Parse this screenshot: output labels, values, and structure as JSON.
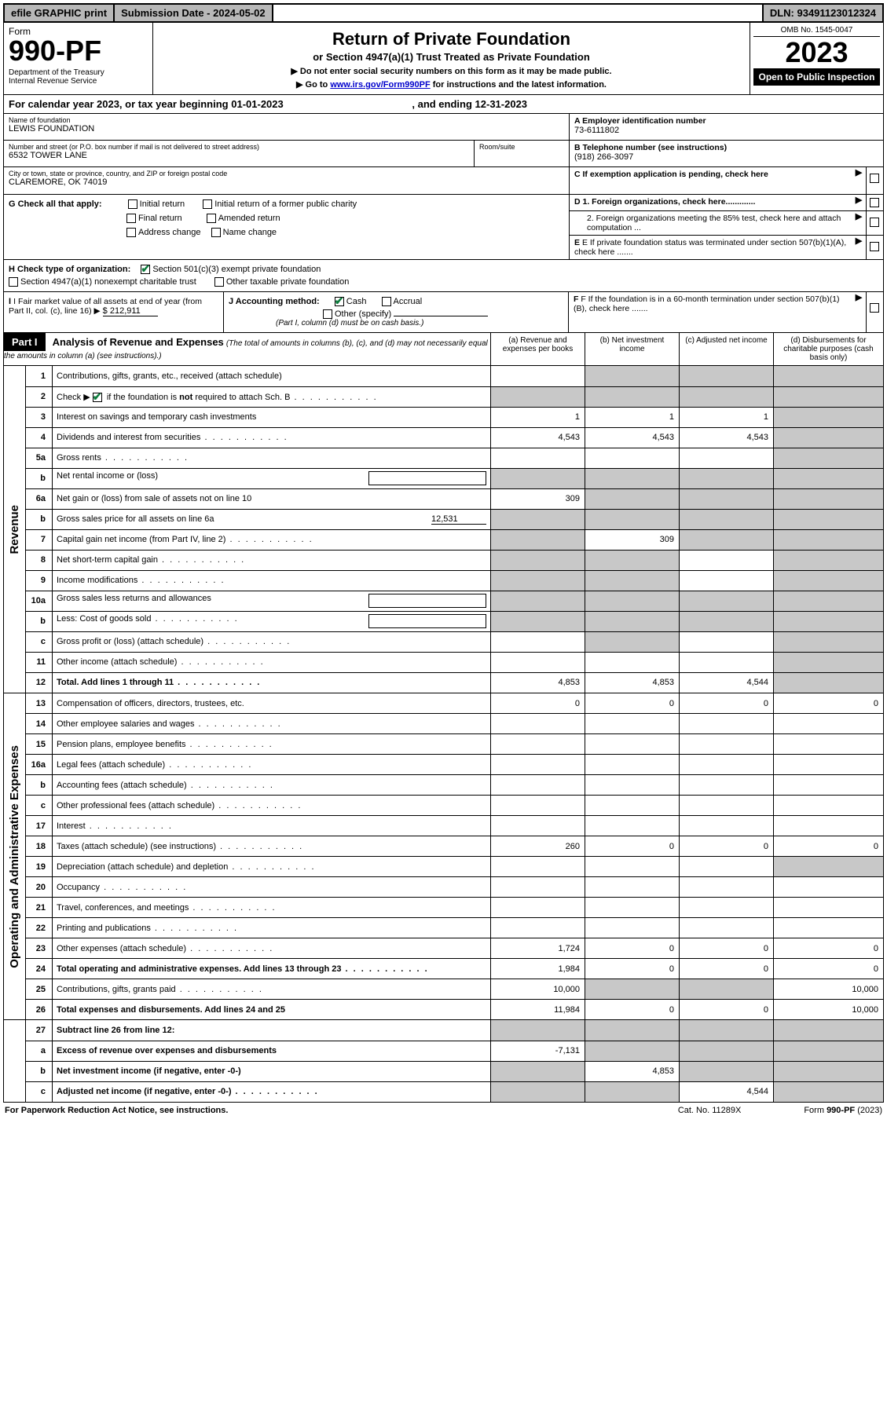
{
  "topbar": {
    "efile": "efile GRAPHIC print",
    "subdate_label": "Submission Date - ",
    "subdate": "2024-05-02",
    "dln_label": "DLN: ",
    "dln": "93491123012324"
  },
  "header": {
    "form_label": "Form",
    "form_num": "990-PF",
    "dept": "Department of the Treasury",
    "irs": "Internal Revenue Service",
    "title": "Return of Private Foundation",
    "subtitle": "or Section 4947(a)(1) Trust Treated as Private Foundation",
    "note1": "▶ Do not enter social security numbers on this form as it may be made public.",
    "note2_pre": "▶ Go to ",
    "note2_link": "www.irs.gov/Form990PF",
    "note2_post": " for instructions and the latest information.",
    "omb": "OMB No. 1545-0047",
    "year": "2023",
    "open": "Open to Public Inspection"
  },
  "calyear": {
    "text_pre": "For calendar year 2023, or tax year beginning ",
    "begin": "01-01-2023",
    "mid": " , and ending ",
    "end": "12-31-2023"
  },
  "ident": {
    "name_label": "Name of foundation",
    "name": "LEWIS FOUNDATION",
    "addr_label": "Number and street (or P.O. box number if mail is not delivered to street address)",
    "addr": "6532 TOWER LANE",
    "room_label": "Room/suite",
    "room": "",
    "city_label": "City or town, state or province, country, and ZIP or foreign postal code",
    "city": "CLAREMORE, OK  74019",
    "A_label": "A Employer identification number",
    "A_val": "73-6111802",
    "B_label": "B Telephone number (see instructions)",
    "B_val": "(918) 266-3097",
    "C_label": "C If exemption application is pending, check here",
    "D1_label": "D 1. Foreign organizations, check here.............",
    "D2_label": "2. Foreign organizations meeting the 85% test, check here and attach computation ...",
    "E_label": "E  If private foundation status was terminated under section 507(b)(1)(A), check here .......",
    "F_label": "F  If the foundation is in a 60-month termination under section 507(b)(1)(B), check here ......."
  },
  "G": {
    "label": "G Check all that apply:",
    "opts": [
      "Initial return",
      "Initial return of a former public charity",
      "Final return",
      "Amended return",
      "Address change",
      "Name change"
    ]
  },
  "H": {
    "label": "H Check type of organization:",
    "o1": "Section 501(c)(3) exempt private foundation",
    "o2": "Section 4947(a)(1) nonexempt charitable trust",
    "o3": "Other taxable private foundation"
  },
  "I": {
    "label": "I Fair market value of all assets at end of year (from Part II, col. (c), line 16) ▶",
    "val": "$  212,911"
  },
  "J": {
    "label": "J Accounting method:",
    "cash": "Cash",
    "accrual": "Accrual",
    "other": "Other (specify)",
    "note": "(Part I, column (d) must be on cash basis.)"
  },
  "part1": {
    "badge": "Part I",
    "title": "Analysis of Revenue and Expenses",
    "title_note": "(The total of amounts in columns (b), (c), and (d) may not necessarily equal the amounts in column (a) (see instructions).)",
    "col_a": "(a)  Revenue and expenses per books",
    "col_b": "(b)  Net investment income",
    "col_c": "(c)  Adjusted net income",
    "col_d": "(d)  Disbursements for charitable purposes (cash basis only)"
  },
  "side": {
    "revenue": "Revenue",
    "expenses": "Operating and Administrative Expenses"
  },
  "rows": {
    "1": {
      "n": "1",
      "d": "Contributions, gifts, grants, etc., received (attach schedule)",
      "a": "",
      "b": "",
      "c": "",
      "dd": "",
      "shade": [
        "b",
        "c",
        "dd"
      ]
    },
    "2": {
      "n": "2",
      "d": "Check ▶ [✔] if the foundation is not required to attach Sch. B",
      "dots": true,
      "a": "",
      "b": "",
      "c": "",
      "dd": "",
      "shade": [
        "a",
        "b",
        "c",
        "dd"
      ]
    },
    "3": {
      "n": "3",
      "d": "Interest on savings and temporary cash investments",
      "a": "1",
      "b": "1",
      "c": "1",
      "dd": "",
      "shade": [
        "dd"
      ]
    },
    "4": {
      "n": "4",
      "d": "Dividends and interest from securities",
      "dots": true,
      "a": "4,543",
      "b": "4,543",
      "c": "4,543",
      "dd": "",
      "shade": [
        "dd"
      ]
    },
    "5a": {
      "n": "5a",
      "d": "Gross rents",
      "dots": true,
      "a": "",
      "b": "",
      "c": "",
      "dd": "",
      "shade": [
        "dd"
      ]
    },
    "5b": {
      "n": "b",
      "d": "Net rental income or (loss)",
      "box": true,
      "a": "",
      "b": "",
      "c": "",
      "dd": "",
      "shade": [
        "a",
        "b",
        "c",
        "dd"
      ]
    },
    "6a": {
      "n": "6a",
      "d": "Net gain or (loss) from sale of assets not on line 10",
      "a": "309",
      "b": "",
      "c": "",
      "dd": "",
      "shade": [
        "b",
        "c",
        "dd"
      ]
    },
    "6b": {
      "n": "b",
      "d": "Gross sales price for all assets on line 6a",
      "uval": "12,531",
      "a": "",
      "b": "",
      "c": "",
      "dd": "",
      "shade": [
        "a",
        "b",
        "c",
        "dd"
      ]
    },
    "7": {
      "n": "7",
      "d": "Capital gain net income (from Part IV, line 2)",
      "dots": true,
      "a": "",
      "b": "309",
      "c": "",
      "dd": "",
      "shade": [
        "a",
        "c",
        "dd"
      ]
    },
    "8": {
      "n": "8",
      "d": "Net short-term capital gain",
      "dots": true,
      "a": "",
      "b": "",
      "c": "",
      "dd": "",
      "shade": [
        "a",
        "b",
        "dd"
      ]
    },
    "9": {
      "n": "9",
      "d": "Income modifications",
      "dots": true,
      "a": "",
      "b": "",
      "c": "",
      "dd": "",
      "shade": [
        "a",
        "b",
        "dd"
      ]
    },
    "10a": {
      "n": "10a",
      "d": "Gross sales less returns and allowances",
      "box": true,
      "a": "",
      "b": "",
      "c": "",
      "dd": "",
      "shade": [
        "a",
        "b",
        "c",
        "dd"
      ]
    },
    "10b": {
      "n": "b",
      "d": "Less: Cost of goods sold",
      "dots": true,
      "box": true,
      "a": "",
      "b": "",
      "c": "",
      "dd": "",
      "shade": [
        "a",
        "b",
        "c",
        "dd"
      ]
    },
    "10c": {
      "n": "c",
      "d": "Gross profit or (loss) (attach schedule)",
      "dots": true,
      "a": "",
      "b": "",
      "c": "",
      "dd": "",
      "shade": [
        "b",
        "dd"
      ]
    },
    "11": {
      "n": "11",
      "d": "Other income (attach schedule)",
      "dots": true,
      "a": "",
      "b": "",
      "c": "",
      "dd": "",
      "shade": [
        "dd"
      ]
    },
    "12": {
      "n": "12",
      "d": "Total. Add lines 1 through 11",
      "bold": true,
      "dots": true,
      "a": "4,853",
      "b": "4,853",
      "c": "4,544",
      "dd": "",
      "shade": [
        "dd"
      ]
    },
    "13": {
      "n": "13",
      "d": "Compensation of officers, directors, trustees, etc.",
      "a": "0",
      "b": "0",
      "c": "0",
      "dd": "0"
    },
    "14": {
      "n": "14",
      "d": "Other employee salaries and wages",
      "dots": true,
      "a": "",
      "b": "",
      "c": "",
      "dd": ""
    },
    "15": {
      "n": "15",
      "d": "Pension plans, employee benefits",
      "dots": true,
      "a": "",
      "b": "",
      "c": "",
      "dd": ""
    },
    "16a": {
      "n": "16a",
      "d": "Legal fees (attach schedule)",
      "dots": true,
      "a": "",
      "b": "",
      "c": "",
      "dd": ""
    },
    "16b": {
      "n": "b",
      "d": "Accounting fees (attach schedule)",
      "dots": true,
      "a": "",
      "b": "",
      "c": "",
      "dd": ""
    },
    "16c": {
      "n": "c",
      "d": "Other professional fees (attach schedule)",
      "dots": true,
      "a": "",
      "b": "",
      "c": "",
      "dd": ""
    },
    "17": {
      "n": "17",
      "d": "Interest",
      "dots": true,
      "a": "",
      "b": "",
      "c": "",
      "dd": ""
    },
    "18": {
      "n": "18",
      "d": "Taxes (attach schedule) (see instructions)",
      "dots": true,
      "a": "260",
      "b": "0",
      "c": "0",
      "dd": "0"
    },
    "19": {
      "n": "19",
      "d": "Depreciation (attach schedule) and depletion",
      "dots": true,
      "a": "",
      "b": "",
      "c": "",
      "dd": "",
      "shade": [
        "dd"
      ]
    },
    "20": {
      "n": "20",
      "d": "Occupancy",
      "dots": true,
      "a": "",
      "b": "",
      "c": "",
      "dd": ""
    },
    "21": {
      "n": "21",
      "d": "Travel, conferences, and meetings",
      "dots": true,
      "a": "",
      "b": "",
      "c": "",
      "dd": ""
    },
    "22": {
      "n": "22",
      "d": "Printing and publications",
      "dots": true,
      "a": "",
      "b": "",
      "c": "",
      "dd": ""
    },
    "23": {
      "n": "23",
      "d": "Other expenses (attach schedule)",
      "dots": true,
      "a": "1,724",
      "b": "0",
      "c": "0",
      "dd": "0"
    },
    "24": {
      "n": "24",
      "d": "Total operating and administrative expenses. Add lines 13 through 23",
      "bold": true,
      "dots": true,
      "a": "1,984",
      "b": "0",
      "c": "0",
      "dd": "0"
    },
    "25": {
      "n": "25",
      "d": "Contributions, gifts, grants paid",
      "dots": true,
      "a": "10,000",
      "b": "",
      "c": "",
      "dd": "10,000",
      "shade": [
        "b",
        "c"
      ]
    },
    "26": {
      "n": "26",
      "d": "Total expenses and disbursements. Add lines 24 and 25",
      "bold": true,
      "a": "11,984",
      "b": "0",
      "c": "0",
      "dd": "10,000"
    },
    "27": {
      "n": "27",
      "d": "Subtract line 26 from line 12:",
      "bold": true,
      "a": "",
      "b": "",
      "c": "",
      "dd": "",
      "shade": [
        "a",
        "b",
        "c",
        "dd"
      ]
    },
    "27a": {
      "n": "a",
      "d": "Excess of revenue over expenses and disbursements",
      "bold": true,
      "a": "-7,131",
      "b": "",
      "c": "",
      "dd": "",
      "shade": [
        "b",
        "c",
        "dd"
      ]
    },
    "27b": {
      "n": "b",
      "d": "Net investment income (if negative, enter -0-)",
      "bold": true,
      "a": "",
      "b": "4,853",
      "c": "",
      "dd": "",
      "shade": [
        "a",
        "c",
        "dd"
      ]
    },
    "27c": {
      "n": "c",
      "d": "Adjusted net income (if negative, enter -0-)",
      "bold": true,
      "dots": true,
      "a": "",
      "b": "",
      "c": "4,544",
      "dd": "",
      "shade": [
        "a",
        "b",
        "dd"
      ]
    }
  },
  "footer": {
    "left": "For Paperwork Reduction Act Notice, see instructions.",
    "mid": "Cat. No. 11289X",
    "right": "Form 990-PF (2023)"
  },
  "colors": {
    "shade": "#c8c8c8",
    "topbar": "#b8b8b8",
    "check": "#0a7a3a",
    "link": "#0000cc"
  }
}
